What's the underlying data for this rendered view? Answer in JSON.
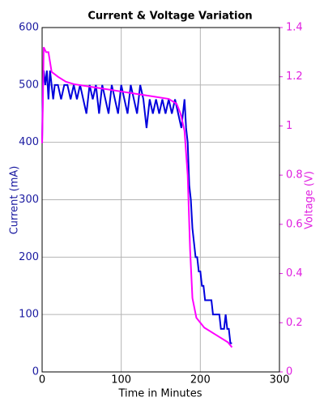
{
  "chart_data": {
    "type": "line",
    "title": "Current & Voltage Variation",
    "x_label": "Time in Minutes",
    "y_label": "Current (mA)",
    "y2_label": "Voltage (V)",
    "xlim": [
      0,
      300
    ],
    "xticks": [
      0,
      100,
      200,
      300
    ],
    "ylim": [
      0,
      600
    ],
    "yticks": [
      0,
      100,
      200,
      300,
      400,
      500,
      600
    ],
    "y2lim": [
      0,
      1.4
    ],
    "y2ticks": [
      0,
      0.2,
      0.4,
      0.6,
      0.8,
      1,
      1.2,
      1.4
    ],
    "grid": true,
    "series": [
      {
        "color": "#0000dd",
        "axis": "y",
        "x": [
          0,
          1,
          2,
          4,
          6,
          8,
          10,
          12,
          14,
          16,
          20,
          24,
          28,
          32,
          36,
          40,
          44,
          48,
          52,
          56,
          60,
          64,
          68,
          72,
          76,
          80,
          84,
          88,
          92,
          96,
          100,
          104,
          108,
          112,
          116,
          120,
          124,
          128,
          132,
          136,
          140,
          144,
          148,
          152,
          156,
          160,
          164,
          168,
          172,
          176,
          180,
          182,
          184,
          186,
          188,
          190,
          192,
          194,
          196,
          198,
          200,
          202,
          204,
          206,
          210,
          214,
          216,
          220,
          224,
          226,
          230,
          232,
          234,
          236,
          238,
          240
        ],
        "values": [
          400,
          500,
          525,
          500,
          525,
          475,
          525,
          500,
          475,
          500,
          500,
          475,
          500,
          500,
          475,
          500,
          475,
          500,
          475,
          450,
          500,
          475,
          500,
          450,
          500,
          475,
          450,
          500,
          475,
          450,
          500,
          475,
          450,
          500,
          475,
          450,
          500,
          475,
          425,
          475,
          450,
          475,
          450,
          475,
          450,
          475,
          450,
          475,
          450,
          425,
          475,
          425,
          400,
          325,
          300,
          250,
          225,
          200,
          200,
          175,
          175,
          150,
          150,
          125,
          125,
          125,
          100,
          100,
          100,
          75,
          75,
          100,
          75,
          75,
          50,
          50
        ]
      },
      {
        "color": "#ff00ff",
        "axis": "y2",
        "x": [
          0,
          1,
          2,
          5,
          8,
          12,
          20,
          30,
          40,
          60,
          80,
          100,
          120,
          140,
          160,
          170,
          175,
          180,
          184,
          187,
          190,
          195,
          205,
          220,
          235,
          240
        ],
        "values": [
          0.93,
          1.1,
          1.32,
          1.3,
          1.3,
          1.22,
          1.2,
          1.18,
          1.17,
          1.16,
          1.15,
          1.14,
          1.13,
          1.12,
          1.11,
          1.09,
          1.05,
          0.98,
          0.8,
          0.5,
          0.3,
          0.22,
          0.18,
          0.15,
          0.12,
          0.1
        ]
      }
    ]
  }
}
